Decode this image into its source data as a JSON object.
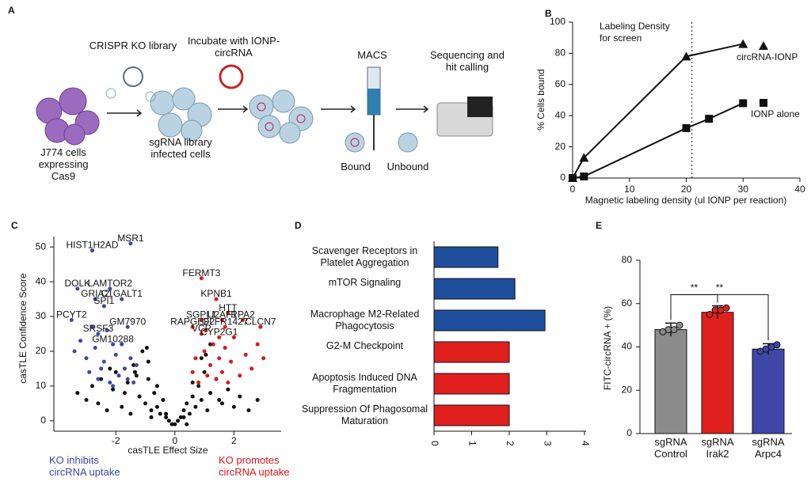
{
  "panel_a": {
    "label": "A",
    "crispr": "CRISPR KO library",
    "incubate": "Incubate with IONP-circRNA",
    "macs": "MACS",
    "sequencing": "Sequencing and hit calling",
    "cells": "J774 cells expressing Cas9",
    "library": "sgRNA library infected cells",
    "bound": "Bound",
    "unbound": "Unbound"
  },
  "chart_data": [
    {
      "panel": "B",
      "type": "line",
      "xlabel": "Magnetic labeling density (ul IONP per reaction)",
      "ylabel": "% Cells bound",
      "xlim": [
        0,
        40
      ],
      "ylim": [
        0,
        100
      ],
      "xticks": [
        0,
        10,
        20,
        30,
        40
      ],
      "yticks": [
        0,
        20,
        40,
        60,
        80,
        100
      ],
      "annotation": {
        "text": "Labeling Density for screen",
        "x": 21
      },
      "series": [
        {
          "name": "circRNA-IONP",
          "color": "#111111",
          "marker": "triangle",
          "x": [
            0,
            2,
            20,
            30
          ],
          "values": [
            0,
            13,
            78,
            86
          ]
        },
        {
          "name": "IONP alone",
          "color": "#111111",
          "marker": "square",
          "x": [
            0,
            2,
            20,
            24,
            30
          ],
          "values": [
            0,
            1,
            32,
            38,
            48
          ]
        }
      ]
    },
    {
      "panel": "C",
      "type": "scatter",
      "xlabel": "casTLE Effect Size",
      "ylabel": "casTLE Confidence Score",
      "xlim": [
        -4.1,
        3.6
      ],
      "ylim": [
        -3,
        53
      ],
      "xticks": [
        -2,
        0,
        2
      ],
      "yticks": [
        0,
        10,
        20,
        30,
        40,
        50
      ],
      "series": [
        {
          "color": "#111111",
          "x": [
            -3.3,
            -3.0,
            -2.8,
            -2.6,
            -2.5,
            -2.3,
            -2.1,
            -2.0,
            -1.8,
            -1.6,
            -1.5,
            -1.3,
            -1.2,
            -1.0,
            -0.9,
            -0.8,
            -0.7,
            -0.6,
            -0.5,
            -0.4,
            -0.3,
            -0.2,
            -0.1,
            0.0,
            0.1,
            0.2,
            0.3,
            0.4,
            0.5,
            0.6,
            0.7,
            0.8,
            0.9,
            1.0,
            1.1,
            1.2,
            1.4,
            1.6,
            1.8,
            2.0,
            2.2,
            2.5,
            2.8,
            -1.1,
            -0.9,
            -0.6,
            0.6,
            0.9,
            1.2,
            -1.4,
            -2.2,
            -0.8,
            0.4,
            -0.3,
            0.3,
            -1.7,
            1.5,
            -0.95,
            1.05,
            -1.35
          ],
          "values": [
            8,
            6,
            10,
            5,
            12,
            3,
            9,
            14,
            4,
            11,
            2,
            13,
            7,
            5,
            12,
            3,
            8,
            4,
            2,
            6,
            1,
            0,
            -1,
            -1,
            0,
            1,
            3,
            5,
            2,
            7,
            4,
            10,
            6,
            14,
            3,
            8,
            12,
            5,
            9,
            4,
            7,
            3,
            6,
            20,
            17,
            10,
            11,
            18,
            22,
            16,
            15,
            1,
            -1,
            2,
            1,
            8,
            6,
            21,
            19,
            14
          ]
        },
        {
          "name": "KO inhibits circRNA uptake",
          "color": "#3b46a6",
          "x": [
            -3.4,
            -3.2,
            -3.0,
            -2.9,
            -2.7,
            -2.6,
            -2.4,
            -2.3,
            -2.2,
            -2.0,
            -1.9,
            -1.8,
            -1.7,
            -1.6,
            -1.5,
            -1.4,
            -1.3,
            -2.8,
            -2.5,
            -2.1
          ],
          "values": [
            20,
            23,
            18,
            14,
            21,
            12,
            17,
            26,
            11,
            19,
            13,
            22,
            15,
            12,
            18,
            11,
            16,
            27,
            15,
            10
          ],
          "labels": [
            {
              "text": "HIST1H2AD",
              "x": -2.8,
              "y": 49
            },
            {
              "text": "MSR1",
              "x": -1.5,
              "y": 51
            },
            {
              "text": "DOLK",
              "x": -3.3,
              "y": 38
            },
            {
              "text": "LAMTOR2",
              "x": -2.2,
              "y": 38
            },
            {
              "text": "GRIA2",
              "x": -2.7,
              "y": 35
            },
            {
              "text": "C1GALT1",
              "x": -1.8,
              "y": 35
            },
            {
              "text": "SPI1",
              "x": -2.4,
              "y": 33
            },
            {
              "text": "PCYT2",
              "x": -3.5,
              "y": 29
            },
            {
              "text": "GM7970",
              "x": -1.6,
              "y": 27
            },
            {
              "text": "SRSF3",
              "x": -2.6,
              "y": 25
            },
            {
              "text": "GM10288",
              "x": -2.1,
              "y": 22
            }
          ]
        },
        {
          "name": "KO promotes circRNA uptake",
          "color": "#e0151c",
          "x": [
            0.6,
            0.7,
            0.8,
            1.0,
            1.1,
            1.2,
            1.3,
            1.4,
            1.5,
            1.6,
            1.7,
            1.8,
            1.9,
            2.0,
            2.2,
            2.4,
            2.6,
            2.8,
            3.0,
            1.05
          ],
          "values": [
            14,
            18,
            11,
            20,
            13,
            16,
            22,
            12,
            18,
            14,
            21,
            11,
            17,
            24,
            13,
            19,
            15,
            22,
            18,
            26
          ],
          "labels": [
            {
              "text": "FERMT3",
              "x": 0.9,
              "y": 41
            },
            {
              "text": "KPNB1",
              "x": 1.4,
              "y": 35
            },
            {
              "text": "HTT",
              "x": 1.8,
              "y": 31
            },
            {
              "text": "SGPL1",
              "x": 0.9,
              "y": 29
            },
            {
              "text": "U2AF1",
              "x": 1.6,
              "y": 29
            },
            {
              "text": "RPA2",
              "x": 2.3,
              "y": 29
            },
            {
              "text": "RAPGEF2",
              "x": 0.6,
              "y": 27
            },
            {
              "text": "OLFR1427",
              "x": 1.7,
              "y": 27
            },
            {
              "text": "CLCN7",
              "x": 2.9,
              "y": 27
            },
            {
              "text": "VCP",
              "x": 0.9,
              "y": 25
            },
            {
              "text": "CYP2G1",
              "x": 1.5,
              "y": 24
            }
          ]
        }
      ]
    },
    {
      "panel": "D",
      "type": "hbar",
      "categories": [
        "Scavenger Receptors in Platelet Aggregation",
        "mTOR Signaling",
        "Macrophage M2-Related Phagocytosis",
        "G2-M Checkpoint",
        "Apoptosis Induced DNA Fragmentation",
        "Suppression Of Phagosomal Maturation"
      ],
      "values": [
        1.7,
        2.15,
        2.95,
        2.0,
        2.0,
        2.0
      ],
      "colors": [
        "#1f4e9c",
        "#1f4e9c",
        "#1f4e9c",
        "#e0201e",
        "#e0201e",
        "#e0201e"
      ],
      "xlim": [
        0,
        4
      ],
      "xticks": [
        0,
        1,
        2,
        3,
        4
      ]
    },
    {
      "panel": "E",
      "type": "bar",
      "ylabel": "FITC-circRNA + (%)",
      "categories": [
        "sgRNA Control",
        "sgRNA Irak2",
        "sgRNA Arpc4"
      ],
      "values": [
        48,
        56,
        39
      ],
      "errors": [
        3,
        3,
        2.5
      ],
      "colors": [
        "#8c8c8c",
        "#e0201e",
        "#3f48a8"
      ],
      "points": [
        [
          47,
          48,
          48,
          50
        ],
        [
          55,
          57,
          57,
          58
        ],
        [
          38,
          39,
          40,
          41
        ]
      ],
      "ylim": [
        0,
        80
      ],
      "yticks": [
        0,
        20,
        40,
        60,
        80
      ],
      "significance": [
        {
          "from": 0,
          "to": 1,
          "label": "**"
        },
        {
          "from": 0,
          "to": 2,
          "label": "**"
        }
      ]
    }
  ]
}
